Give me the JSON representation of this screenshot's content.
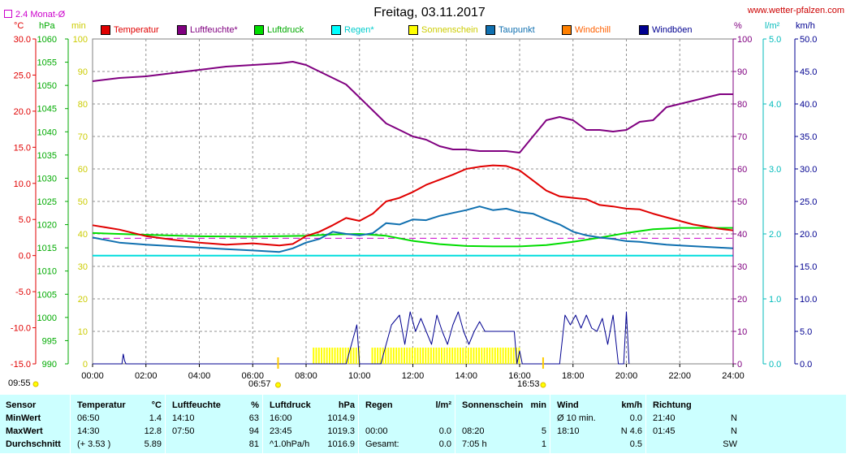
{
  "header": {
    "title": "Freitag, 03.11.2017",
    "site": "www.wetter-pfalzen.com",
    "monat": "2.4 Monat-Ø"
  },
  "legend": [
    {
      "label": "Temperatur",
      "color": "#e00000",
      "text_color": "#e00000"
    },
    {
      "label": "Luftfeuchte*",
      "color": "#800080",
      "text_color": "#800080"
    },
    {
      "label": "Luftdruck",
      "color": "#00dd00",
      "text_color": "#00aa00"
    },
    {
      "label": "Regen*",
      "color": "#00ffff",
      "text_color": "#00cccc"
    },
    {
      "label": "Sonnenschein",
      "color": "#ffff00",
      "text_color": "#cccc00"
    },
    {
      "label": "Taupunkt",
      "color": "#1070b0",
      "text_color": "#1070b0"
    },
    {
      "label": "Windchill",
      "color": "#ff8000",
      "text_color": "#ff6000"
    },
    {
      "label": "Windböen",
      "color": "#000090",
      "text_color": "#000090"
    }
  ],
  "axes": {
    "unit_c": "°C",
    "unit_hpa": "hPa",
    "unit_min": "min",
    "unit_pct": "%",
    "unit_lm2": "l/m²",
    "unit_kmh": "km/h",
    "c_ticks": [
      "30.0",
      "25.0",
      "20.0",
      "15.0",
      "10.0",
      "5.0",
      "0.0",
      "-5.0",
      "-10.0",
      "-15.0"
    ],
    "hpa_ticks": [
      "1060",
      "1055",
      "1050",
      "1045",
      "1040",
      "1035",
      "1030",
      "1025",
      "1020",
      "1015",
      "1010",
      "1005",
      "1000",
      "995",
      "990"
    ],
    "min_ticks": [
      "100",
      "90",
      "80",
      "70",
      "60",
      "50",
      "40",
      "30",
      "20",
      "10",
      "0"
    ],
    "pct_ticks": [
      "100",
      "90",
      "80",
      "70",
      "60",
      "50",
      "40",
      "30",
      "20",
      "10",
      "0"
    ],
    "lm2_ticks": [
      "5.0",
      "4.0",
      "3.0",
      "2.0",
      "1.0",
      "0.0"
    ],
    "kmh_ticks": [
      "50.0",
      "45.0",
      "40.0",
      "35.0",
      "30.0",
      "25.0",
      "20.0",
      "15.0",
      "10.0",
      "5.0",
      "0.0"
    ],
    "x_ticks": [
      "00:00",
      "02:00",
      "04:00",
      "06:00",
      "08:00",
      "10:00",
      "12:00",
      "14:00",
      "16:00",
      "18:00",
      "20:00",
      "22:00",
      "24:00"
    ],
    "sunrise": "06:57",
    "sunset": "16:53",
    "left_time": "09:55"
  },
  "chart_data": {
    "type": "line",
    "x_unit": "hours",
    "avg_temp_c": 2.4,
    "series": [
      {
        "name": "Temperatur",
        "unit": "°C",
        "x": [
          0,
          1,
          2,
          3,
          4,
          5,
          6,
          7,
          7.5,
          8,
          8.5,
          9,
          9.5,
          10,
          10.5,
          11,
          11.5,
          12,
          12.5,
          13,
          13.5,
          14,
          14.5,
          15,
          15.5,
          16,
          16.5,
          17,
          17.5,
          18,
          18.5,
          19,
          19.5,
          20,
          20.5,
          21,
          21.5,
          22,
          22.5,
          23,
          23.5,
          24
        ],
        "values": [
          4.2,
          3.6,
          2.7,
          2.2,
          1.8,
          1.5,
          1.7,
          1.4,
          1.6,
          2.7,
          3.3,
          4.2,
          5.2,
          4.8,
          5.8,
          7.5,
          8.0,
          8.8,
          9.8,
          10.5,
          11.2,
          12.0,
          12.3,
          12.5,
          12.4,
          11.8,
          10.4,
          9.0,
          8.2,
          8.0,
          7.8,
          7.0,
          6.8,
          6.5,
          6.4,
          5.8,
          5.3,
          4.8,
          4.3,
          4.0,
          3.7,
          3.5
        ]
      },
      {
        "name": "Taupunkt",
        "unit": "°C",
        "x": [
          0,
          1,
          2,
          3,
          4,
          5,
          6,
          7,
          7.5,
          8,
          8.5,
          9,
          9.5,
          10,
          10.5,
          11,
          11.5,
          12,
          12.5,
          13,
          13.5,
          14,
          14.5,
          15,
          15.5,
          16,
          16.5,
          17,
          17.5,
          18,
          18.5,
          19,
          19.5,
          20,
          20.5,
          21,
          21.5,
          22,
          22.5,
          23,
          23.5,
          24
        ],
        "values": [
          2.5,
          1.8,
          1.5,
          1.3,
          1.1,
          0.9,
          0.7,
          0.5,
          1.0,
          1.8,
          2.3,
          3.3,
          3.0,
          2.8,
          3.1,
          4.5,
          4.3,
          5.0,
          4.9,
          5.5,
          5.9,
          6.3,
          6.8,
          6.3,
          6.5,
          6.0,
          5.8,
          5.0,
          4.3,
          3.3,
          2.8,
          2.5,
          2.3,
          2.0,
          1.9,
          1.7,
          1.5,
          1.4,
          1.3,
          1.2,
          1.1,
          1.0
        ]
      },
      {
        "name": "Luftfeuchte*",
        "unit": "%",
        "x": [
          0,
          1,
          2,
          3,
          4,
          5,
          6,
          7,
          7.5,
          8,
          8.5,
          9,
          9.5,
          10,
          10.5,
          11,
          11.5,
          12,
          12.5,
          13,
          13.5,
          14,
          14.5,
          15,
          15.5,
          16,
          16.5,
          17,
          17.5,
          18,
          18.5,
          19,
          19.5,
          20,
          20.5,
          21,
          21.5,
          22,
          22.5,
          23,
          23.5,
          24
        ],
        "values": [
          87,
          88,
          88.5,
          89.5,
          90.5,
          91.5,
          92,
          92.5,
          93,
          92,
          90,
          88,
          86,
          82,
          78,
          74,
          72,
          70,
          69,
          67,
          66,
          66,
          65.5,
          65.5,
          65.5,
          65,
          70,
          75,
          76,
          75,
          72,
          72,
          71.5,
          72,
          74.5,
          75,
          79,
          80,
          81,
          82,
          83,
          83
        ]
      },
      {
        "name": "Luftdruck",
        "unit": "hPa",
        "x": [
          0,
          2,
          4,
          6,
          8,
          9,
          10,
          11,
          12,
          13,
          14,
          15,
          16,
          17,
          18,
          19,
          20,
          21,
          22,
          23,
          24
        ],
        "values": [
          1018.2,
          1017.8,
          1017.5,
          1017.4,
          1017.6,
          1017.9,
          1018.0,
          1017.6,
          1016.5,
          1015.8,
          1015.4,
          1015.3,
          1015.3,
          1015.6,
          1016.3,
          1017.2,
          1018.2,
          1019.0,
          1019.3,
          1019.3,
          1019.3
        ]
      },
      {
        "name": "Windböen",
        "unit": "km/h",
        "x": [
          0,
          1.1,
          1.15,
          1.2,
          1.25,
          9.5,
          9.7,
          9.9,
          10.0,
          10.1,
          10.8,
          11.0,
          11.2,
          11.5,
          11.7,
          11.9,
          12.1,
          12.3,
          12.5,
          12.7,
          12.9,
          13.1,
          13.3,
          13.5,
          13.7,
          13.9,
          14.1,
          14.3,
          14.5,
          14.7,
          14.9,
          15.1,
          15.3,
          15.5,
          15.7,
          15.8,
          15.9,
          16.0,
          16.1,
          16.2,
          16.6,
          16.8,
          17.0,
          17.2,
          17.5,
          17.7,
          17.9,
          18.1,
          18.3,
          18.5,
          18.7,
          18.9,
          19.1,
          19.3,
          19.5,
          19.7,
          19.9,
          20.0,
          20.1
        ],
        "values": [
          0,
          0,
          1.5,
          0.5,
          0,
          0,
          3,
          6,
          0,
          0,
          0,
          3,
          6,
          7.5,
          3,
          8,
          5,
          7,
          5,
          3,
          7.5,
          5,
          3,
          6,
          8,
          5,
          3,
          5,
          6.5,
          5,
          5,
          5,
          5,
          5,
          5,
          5,
          0,
          2,
          0,
          0,
          0,
          0,
          0,
          0,
          0,
          7.5,
          6,
          7.5,
          5.5,
          7.5,
          5.5,
          5,
          7,
          3,
          7.5,
          0,
          0,
          8,
          0
        ]
      },
      {
        "name": "Regen*",
        "unit": "l/m²",
        "x": [
          0,
          24
        ],
        "values": [
          0,
          0
        ]
      },
      {
        "name": "Sonnenschein",
        "unit": "min",
        "intervals": [
          [
            8.25,
            10.0
          ],
          [
            10.45,
            16.0
          ]
        ]
      }
    ]
  },
  "table": {
    "headers": [
      {
        "label": "Sensor"
      },
      {
        "label": "Temperatur",
        "unit": "°C"
      },
      {
        "label": "Luftfeuchte",
        "unit": "%"
      },
      {
        "label": "Luftdruck",
        "unit": "hPa"
      },
      {
        "label": "Regen",
        "unit": "l/m²"
      },
      {
        "label": "Sonnenschein",
        "unit": "min"
      },
      {
        "label": "Wind",
        "unit": "km/h"
      },
      {
        "label": "Richtung"
      }
    ],
    "rows": [
      {
        "sensor": "MinWert",
        "temp_time": "06:50",
        "temp_val": "1.4",
        "hum_time": "14:10",
        "hum_val": "63",
        "press_time": "16:00",
        "press_val": "1014.9",
        "rain_time": "",
        "rain_val": "",
        "sun_time": "",
        "sun_val": "",
        "wind_time": "Ø 10 min.",
        "wind_val": "0.0",
        "dir_time": "21:40",
        "dir_val": "N"
      },
      {
        "sensor": "MaxWert",
        "temp_time": "14:30",
        "temp_val": "12.8",
        "hum_time": "07:50",
        "hum_val": "94",
        "press_time": "23:45",
        "press_val": "1019.3",
        "rain_time": "00:00",
        "rain_val": "0.0",
        "sun_time": "08:20",
        "sun_val": "5",
        "wind_time": "18:10",
        "wind_val": "N 4.6",
        "dir_time": "01:45",
        "dir_val": "N"
      },
      {
        "sensor": "Durchschnitt",
        "temp_time": "(+ 3.53 )",
        "temp_val": "5.89",
        "hum_time": "",
        "hum_val": "81",
        "press_time": "^1.0hPa/h",
        "press_val": "1016.9",
        "rain_time": "Gesamt:",
        "rain_val": "0.0",
        "sun_time": "7:05 h",
        "sun_val": "1",
        "wind_time": "",
        "wind_val": "0.5",
        "dir_time": "",
        "dir_val": "SW"
      }
    ]
  }
}
